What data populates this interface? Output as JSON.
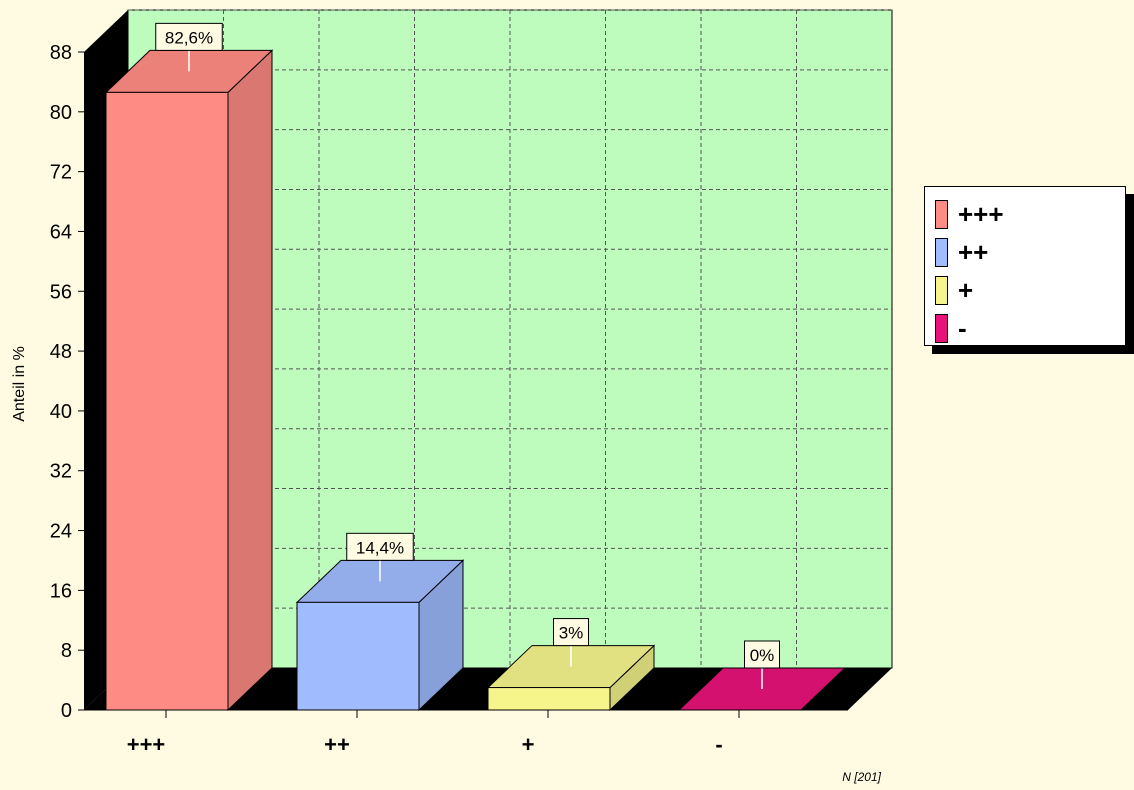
{
  "chart_data": {
    "type": "bar",
    "categories": [
      "+++",
      "++",
      "+",
      "-"
    ],
    "values": [
      82.6,
      14.4,
      3,
      0
    ],
    "data_labels": [
      "82,6%",
      "14,4%",
      "3%",
      "0%"
    ],
    "colors": [
      "#ff8c84",
      "#a0bcff",
      "#f5f58c",
      "#e8137a"
    ],
    "ylabel": "Anteil in %",
    "ylim": [
      0,
      88
    ],
    "yticks": [
      0,
      8,
      16,
      24,
      32,
      40,
      48,
      56,
      64,
      72,
      80,
      88
    ],
    "grid": true,
    "legend_position": "right",
    "footnote": "N [201]",
    "background_color": "#bdfcbd",
    "page_color": "#fffbe3"
  },
  "legend": {
    "items": [
      {
        "label": "+++",
        "color": "#ff8c84"
      },
      {
        "label": "++",
        "color": "#a0bcff"
      },
      {
        "label": "+",
        "color": "#f5f58c"
      },
      {
        "label": "-",
        "color": "#e8137a"
      }
    ]
  }
}
